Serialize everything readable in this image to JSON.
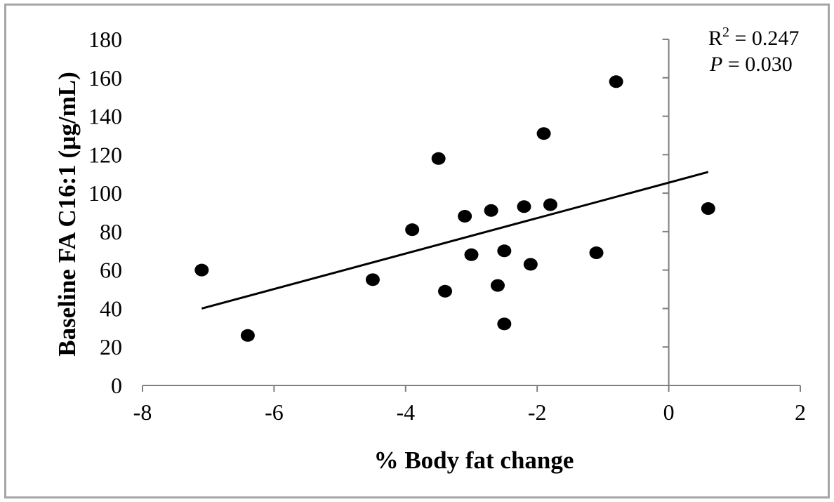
{
  "chart_data": {
    "type": "scatter",
    "title": "",
    "xlabel": "% Body fat change",
    "ylabel": "Baseline FA C16:1 (µg/mL)",
    "xlim": [
      -8,
      2
    ],
    "ylim": [
      0,
      180
    ],
    "xticks": [
      -8,
      -6,
      -4,
      -2,
      0,
      2
    ],
    "yticks": [
      0,
      20,
      40,
      60,
      80,
      100,
      120,
      140,
      160,
      180
    ],
    "grid": false,
    "annotation": {
      "r2_label": "R",
      "r2_sup": "2",
      "r2_value": " = 0.247",
      "p_label": "P",
      "p_value": " = 0.030"
    },
    "points": [
      {
        "x": -7.1,
        "y": 60
      },
      {
        "x": -6.4,
        "y": 26
      },
      {
        "x": -4.5,
        "y": 55
      },
      {
        "x": -3.9,
        "y": 81
      },
      {
        "x": -3.5,
        "y": 118
      },
      {
        "x": -3.4,
        "y": 49
      },
      {
        "x": -3.1,
        "y": 88
      },
      {
        "x": -3.0,
        "y": 68
      },
      {
        "x": -2.7,
        "y": 91
      },
      {
        "x": -2.6,
        "y": 52
      },
      {
        "x": -2.5,
        "y": 70
      },
      {
        "x": -2.5,
        "y": 32
      },
      {
        "x": -2.2,
        "y": 93
      },
      {
        "x": -2.1,
        "y": 63
      },
      {
        "x": -1.9,
        "y": 131
      },
      {
        "x": -1.8,
        "y": 94
      },
      {
        "x": -1.1,
        "y": 69
      },
      {
        "x": -0.8,
        "y": 158
      },
      {
        "x": 0.6,
        "y": 92
      }
    ],
    "trendline": {
      "x": [
        -7.1,
        0.6
      ],
      "y": [
        40,
        111
      ]
    },
    "colors": {
      "points": "#000000",
      "line": "#000000",
      "axis": "#808080"
    }
  }
}
